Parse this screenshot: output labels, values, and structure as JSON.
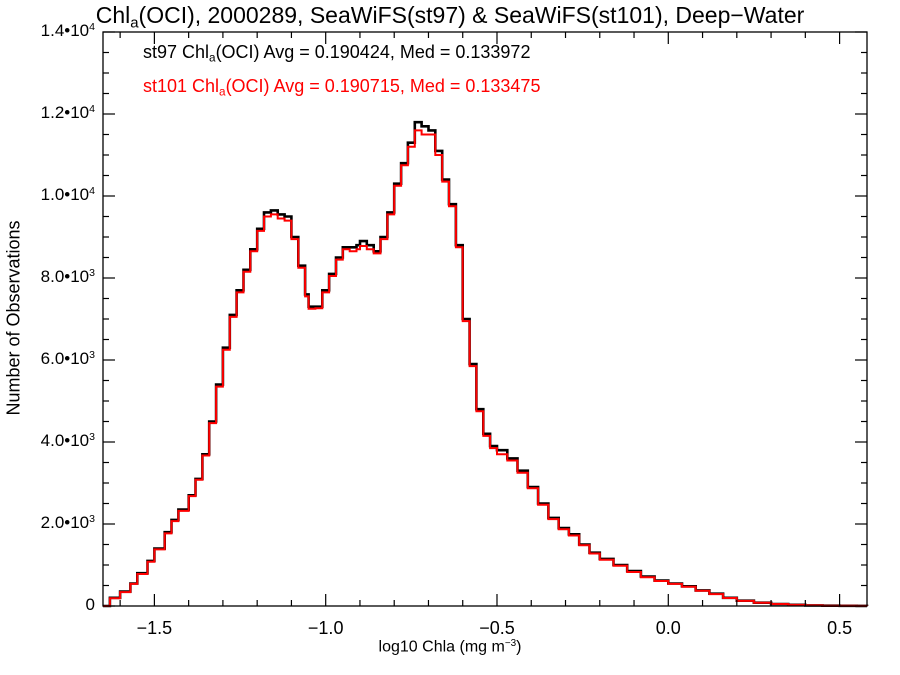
{
  "title": {
    "pre": "Chl",
    "sub": "a",
    "post": "(OCI), 2000289, SeaWiFS(st97) & SeaWiFS(st101), Deep−Water"
  },
  "legend": {
    "black": {
      "pre": "st97 Chl",
      "sub": "a",
      "post": "(OCI) Avg = 0.190424, Med = 0.133972"
    },
    "red": {
      "pre": "st101 Chl",
      "sub": "a",
      "post": "(OCI) Avg = 0.190715, Med = 0.133475"
    }
  },
  "colors": {
    "st97": "#000000",
    "st101": "#ff0000",
    "axes": "#000000",
    "background": "#ffffff"
  },
  "chart_data": {
    "type": "line",
    "step": true,
    "xlabel": {
      "pre": "log10 Chla (mg m",
      "sup": "−3",
      "post": ")"
    },
    "ylabel": "Number of Observations",
    "xlim": [
      -1.65,
      0.58
    ],
    "ylim": [
      0,
      14000
    ],
    "grid": false,
    "legend_position": "top-left",
    "x_ticks": [
      {
        "value": -1.5,
        "label": "−1.5"
      },
      {
        "value": -1.0,
        "label": "−1.0"
      },
      {
        "value": -0.5,
        "label": "−0.5"
      },
      {
        "value": 0.0,
        "label": "0.0"
      },
      {
        "value": 0.5,
        "label": "0.5"
      }
    ],
    "x_minor_step": 0.1,
    "y_ticks": [
      {
        "value": 0,
        "mant": "0",
        "exp": ""
      },
      {
        "value": 2000,
        "mant": "2.0•10",
        "exp": "3"
      },
      {
        "value": 4000,
        "mant": "4.0•10",
        "exp": "3"
      },
      {
        "value": 6000,
        "mant": "6.0•10",
        "exp": "3"
      },
      {
        "value": 8000,
        "mant": "8.0•10",
        "exp": "3"
      },
      {
        "value": 10000,
        "mant": "1.0•10",
        "exp": "4"
      },
      {
        "value": 12000,
        "mant": "1.2•10",
        "exp": "4"
      },
      {
        "value": 14000,
        "mant": "1.4•10",
        "exp": "4"
      }
    ],
    "y_minor_step": 500,
    "series": [
      {
        "name": "st97",
        "color": "#000000",
        "points": [
          [
            -1.65,
            0
          ],
          [
            -1.63,
            200
          ],
          [
            -1.6,
            350
          ],
          [
            -1.57,
            550
          ],
          [
            -1.55,
            800
          ],
          [
            -1.52,
            1100
          ],
          [
            -1.5,
            1400
          ],
          [
            -1.47,
            1800
          ],
          [
            -1.45,
            2100
          ],
          [
            -1.43,
            2350
          ],
          [
            -1.4,
            2700
          ],
          [
            -1.38,
            3100
          ],
          [
            -1.36,
            3700
          ],
          [
            -1.34,
            4500
          ],
          [
            -1.32,
            5400
          ],
          [
            -1.3,
            6300
          ],
          [
            -1.28,
            7100
          ],
          [
            -1.26,
            7700
          ],
          [
            -1.24,
            8200
          ],
          [
            -1.22,
            8700
          ],
          [
            -1.2,
            9200
          ],
          [
            -1.18,
            9600
          ],
          [
            -1.16,
            9650
          ],
          [
            -1.14,
            9550
          ],
          [
            -1.12,
            9500
          ],
          [
            -1.1,
            9000
          ],
          [
            -1.08,
            8300
          ],
          [
            -1.06,
            7600
          ],
          [
            -1.05,
            7300
          ],
          [
            -1.03,
            7300
          ],
          [
            -1.01,
            7700
          ],
          [
            -0.99,
            8100
          ],
          [
            -0.97,
            8500
          ],
          [
            -0.95,
            8750
          ],
          [
            -0.93,
            8750
          ],
          [
            -0.91,
            8800
          ],
          [
            -0.9,
            8900
          ],
          [
            -0.88,
            8800
          ],
          [
            -0.86,
            8650
          ],
          [
            -0.84,
            9000
          ],
          [
            -0.82,
            9600
          ],
          [
            -0.8,
            10300
          ],
          [
            -0.78,
            10800
          ],
          [
            -0.76,
            11300
          ],
          [
            -0.74,
            11800
          ],
          [
            -0.72,
            11700
          ],
          [
            -0.7,
            11600
          ],
          [
            -0.68,
            11100
          ],
          [
            -0.66,
            10400
          ],
          [
            -0.64,
            9800
          ],
          [
            -0.62,
            8800
          ],
          [
            -0.6,
            7000
          ],
          [
            -0.58,
            5900
          ],
          [
            -0.56,
            4800
          ],
          [
            -0.54,
            4200
          ],
          [
            -0.52,
            3900
          ],
          [
            -0.5,
            3800
          ],
          [
            -0.47,
            3600
          ],
          [
            -0.44,
            3300
          ],
          [
            -0.41,
            2900
          ],
          [
            -0.38,
            2500
          ],
          [
            -0.35,
            2150
          ],
          [
            -0.32,
            1900
          ],
          [
            -0.29,
            1750
          ],
          [
            -0.26,
            1500
          ],
          [
            -0.23,
            1300
          ],
          [
            -0.2,
            1150
          ],
          [
            -0.16,
            1000
          ],
          [
            -0.12,
            850
          ],
          [
            -0.08,
            720
          ],
          [
            -0.04,
            620
          ],
          [
            0.0,
            550
          ],
          [
            0.04,
            480
          ],
          [
            0.08,
            380
          ],
          [
            0.12,
            300
          ],
          [
            0.16,
            200
          ],
          [
            0.2,
            130
          ],
          [
            0.25,
            80
          ],
          [
            0.3,
            50
          ],
          [
            0.35,
            30
          ],
          [
            0.4,
            15
          ],
          [
            0.45,
            8
          ],
          [
            0.5,
            4
          ],
          [
            0.55,
            2
          ],
          [
            0.58,
            1
          ]
        ]
      },
      {
        "name": "st101",
        "color": "#ff0000",
        "points": [
          [
            -1.65,
            0
          ],
          [
            -1.63,
            190
          ],
          [
            -1.6,
            340
          ],
          [
            -1.57,
            540
          ],
          [
            -1.55,
            780
          ],
          [
            -1.52,
            1080
          ],
          [
            -1.5,
            1380
          ],
          [
            -1.47,
            1770
          ],
          [
            -1.45,
            2070
          ],
          [
            -1.43,
            2320
          ],
          [
            -1.4,
            2680
          ],
          [
            -1.38,
            3080
          ],
          [
            -1.36,
            3670
          ],
          [
            -1.34,
            4460
          ],
          [
            -1.32,
            5350
          ],
          [
            -1.3,
            6250
          ],
          [
            -1.28,
            7050
          ],
          [
            -1.26,
            7650
          ],
          [
            -1.24,
            8150
          ],
          [
            -1.22,
            8650
          ],
          [
            -1.2,
            9150
          ],
          [
            -1.18,
            9500
          ],
          [
            -1.16,
            9550
          ],
          [
            -1.14,
            9450
          ],
          [
            -1.12,
            9400
          ],
          [
            -1.1,
            8950
          ],
          [
            -1.08,
            8250
          ],
          [
            -1.06,
            7550
          ],
          [
            -1.05,
            7250
          ],
          [
            -1.03,
            7260
          ],
          [
            -1.01,
            7650
          ],
          [
            -0.99,
            8050
          ],
          [
            -0.97,
            8450
          ],
          [
            -0.95,
            8700
          ],
          [
            -0.93,
            8650
          ],
          [
            -0.91,
            8700
          ],
          [
            -0.9,
            8780
          ],
          [
            -0.88,
            8700
          ],
          [
            -0.86,
            8600
          ],
          [
            -0.84,
            8950
          ],
          [
            -0.82,
            9550
          ],
          [
            -0.8,
            10250
          ],
          [
            -0.78,
            10750
          ],
          [
            -0.76,
            11200
          ],
          [
            -0.74,
            11600
          ],
          [
            -0.72,
            11500
          ],
          [
            -0.7,
            11500
          ],
          [
            -0.68,
            11000
          ],
          [
            -0.66,
            10350
          ],
          [
            -0.64,
            9750
          ],
          [
            -0.62,
            8750
          ],
          [
            -0.6,
            6950
          ],
          [
            -0.58,
            5850
          ],
          [
            -0.56,
            4750
          ],
          [
            -0.54,
            4150
          ],
          [
            -0.52,
            3850
          ],
          [
            -0.5,
            3700
          ],
          [
            -0.47,
            3550
          ],
          [
            -0.44,
            3250
          ],
          [
            -0.41,
            2870
          ],
          [
            -0.38,
            2470
          ],
          [
            -0.35,
            2120
          ],
          [
            -0.32,
            1870
          ],
          [
            -0.29,
            1720
          ],
          [
            -0.26,
            1480
          ],
          [
            -0.23,
            1280
          ],
          [
            -0.2,
            1130
          ],
          [
            -0.16,
            980
          ],
          [
            -0.12,
            830
          ],
          [
            -0.08,
            700
          ],
          [
            -0.04,
            610
          ],
          [
            0.0,
            540
          ],
          [
            0.04,
            470
          ],
          [
            0.08,
            370
          ],
          [
            0.12,
            290
          ],
          [
            0.16,
            195
          ],
          [
            0.2,
            125
          ],
          [
            0.25,
            78
          ],
          [
            0.3,
            48
          ],
          [
            0.35,
            28
          ],
          [
            0.4,
            14
          ],
          [
            0.45,
            7
          ],
          [
            0.5,
            4
          ],
          [
            0.55,
            2
          ],
          [
            0.58,
            1
          ]
        ]
      }
    ]
  }
}
